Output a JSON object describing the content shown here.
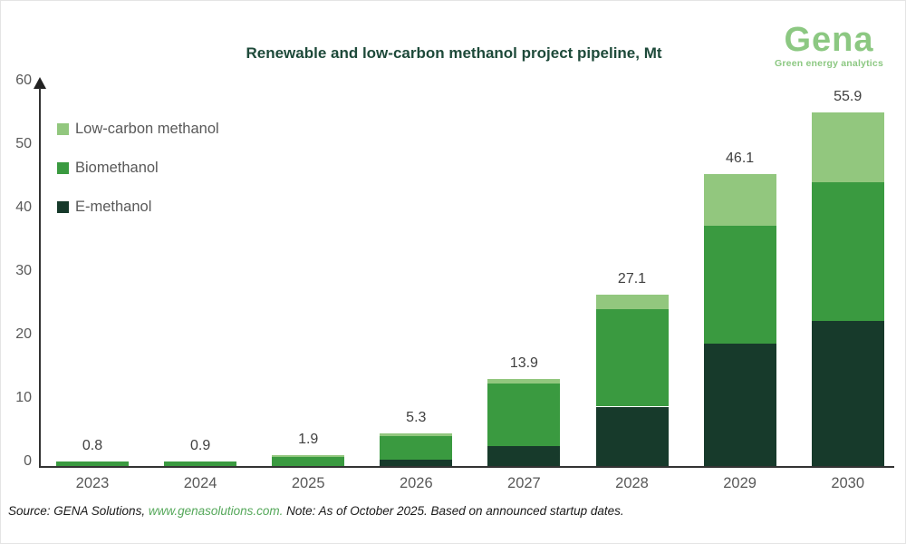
{
  "header": {
    "title": "Renewable and low-carbon methanol project pipeline, Mt",
    "logo": {
      "name": "Gena",
      "tagline": "Green energy analytics",
      "color": "#8CC882"
    }
  },
  "legend": {
    "items": [
      {
        "label": "Low-carbon methanol",
        "color": "#92C77E"
      },
      {
        "label": "Biomethanol",
        "color": "#3A9A40"
      },
      {
        "label": "E-methanol",
        "color": "#173A2B"
      }
    ]
  },
  "chart_data": {
    "type": "bar",
    "stacked": true,
    "title": "Renewable and low-carbon methanol project pipeline, Mt",
    "categories": [
      "2023",
      "2024",
      "2025",
      "2026",
      "2027",
      "2028",
      "2029",
      "2030"
    ],
    "series": [
      {
        "name": "E-methanol",
        "color": "#173A2B",
        "values": [
          0.0,
          0.0,
          0.0,
          1.2,
          3.3,
          9.5,
          19.5,
          23.0
        ]
      },
      {
        "name": "Biomethanol",
        "color": "#3A9A40",
        "values": [
          0.8,
          0.9,
          1.6,
          3.7,
          9.9,
          15.3,
          18.5,
          21.8
        ]
      },
      {
        "name": "Low-carbon methanol",
        "color": "#92C77E",
        "values": [
          0.0,
          0.0,
          0.3,
          0.4,
          0.7,
          2.3,
          8.1,
          11.1
        ]
      }
    ],
    "totals": [
      "0.8",
      "0.9",
      "1.9",
      "5.3",
      "13.9",
      "27.1",
      "46.1",
      "55.9"
    ],
    "yticks": [
      0,
      10,
      20,
      30,
      40,
      50,
      60
    ],
    "ylim": [
      0,
      60
    ],
    "xlabel": "",
    "ylabel": "Mt",
    "grid": false,
    "legend_position": "upper-left"
  },
  "footer": {
    "source_prefix": "Source: GENA Solutions, ",
    "source_link": "www.genasolutions.com.",
    "note": " Note: As of October 2025. Based on announced startup dates."
  },
  "colors": {
    "title": "#1E4A3A",
    "axis": "#333333",
    "tick_label": "#595959",
    "data_label": "#404040",
    "link": "#55A85A"
  }
}
